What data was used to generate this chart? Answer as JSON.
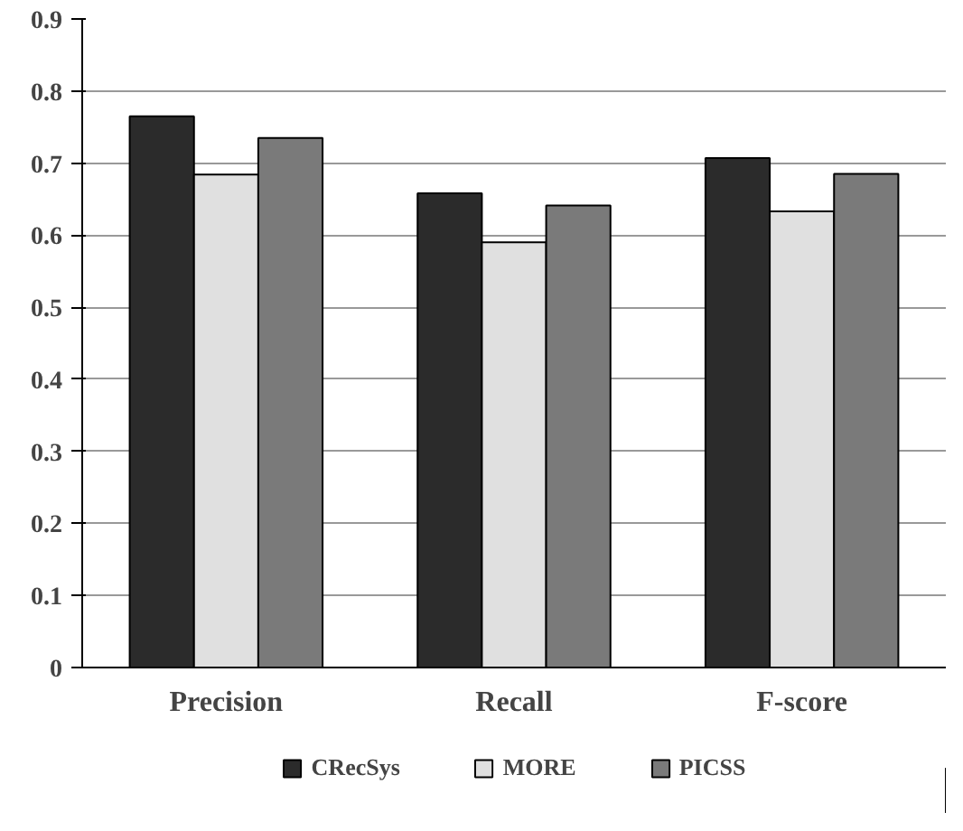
{
  "chart_data": {
    "type": "bar",
    "categories": [
      "Precision",
      "Recall",
      "F-score"
    ],
    "series": [
      {
        "name": "CRecSys",
        "color": "#2b2b2b",
        "values": [
          0.765,
          0.658,
          0.707
        ]
      },
      {
        "name": "MORE",
        "color": "#e0e0e0",
        "values": [
          0.684,
          0.59,
          0.633
        ]
      },
      {
        "name": "PICSS",
        "color": "#7a7a7a",
        "values": [
          0.735,
          0.641,
          0.685
        ]
      }
    ],
    "ylim": [
      0,
      0.9
    ],
    "yticks": [
      0,
      0.1,
      0.2,
      0.3,
      0.4,
      0.5,
      0.6,
      0.7,
      0.8,
      0.9
    ],
    "grid": "y",
    "legend": "bottom"
  }
}
